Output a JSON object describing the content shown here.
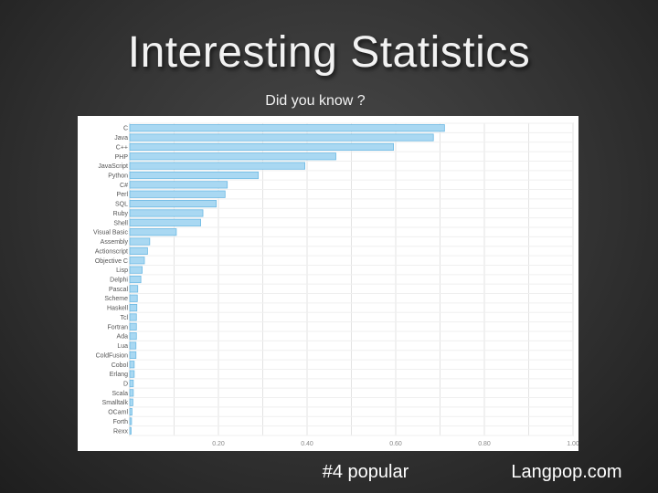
{
  "slide": {
    "title": "Interesting Statistics",
    "subtitle": "Did you know ?",
    "footer_left": "#4 popular",
    "footer_right": "Langpop.com"
  },
  "colors": {
    "bar_fill": "#a9d8f2",
    "bar_stroke": "#6cb9e3",
    "grid": "#e3e3e3",
    "axis_text": "#888888"
  },
  "chart_data": {
    "type": "bar",
    "orientation": "horizontal",
    "title": "",
    "xlabel": "",
    "ylabel": "",
    "xlim": [
      0,
      1.0
    ],
    "xticks": [
      {
        "value": 0.2,
        "label": "0.20"
      },
      {
        "value": 0.4,
        "label": "0.40"
      },
      {
        "value": 0.6,
        "label": "0.60"
      },
      {
        "value": 0.8,
        "label": "0.80"
      },
      {
        "value": 1.0,
        "label": "1.00"
      }
    ],
    "grid": true,
    "categories": [
      "C",
      "Java",
      "C++",
      "PHP",
      "JavaScript",
      "Python",
      "C#",
      "Perl",
      "SQL",
      "Ruby",
      "Shell",
      "Visual Basic",
      "Assembly",
      "Actionscript",
      "Objective C",
      "Lisp",
      "Delphi",
      "Pascal",
      "Scheme",
      "Haskell",
      "Tcl",
      "Fortran",
      "Ada",
      "Lua",
      "ColdFusion",
      "Cobol",
      "Erlang",
      "D",
      "Scala",
      "Smalltalk",
      "OCaml",
      "Forth",
      "Rexx"
    ],
    "values": [
      0.71,
      0.685,
      0.595,
      0.465,
      0.395,
      0.29,
      0.22,
      0.215,
      0.195,
      0.165,
      0.16,
      0.105,
      0.045,
      0.04,
      0.033,
      0.028,
      0.025,
      0.018,
      0.017,
      0.016,
      0.015,
      0.015,
      0.015,
      0.014,
      0.014,
      0.01,
      0.01,
      0.008,
      0.008,
      0.007,
      0.005,
      0.004,
      0.003
    ]
  }
}
